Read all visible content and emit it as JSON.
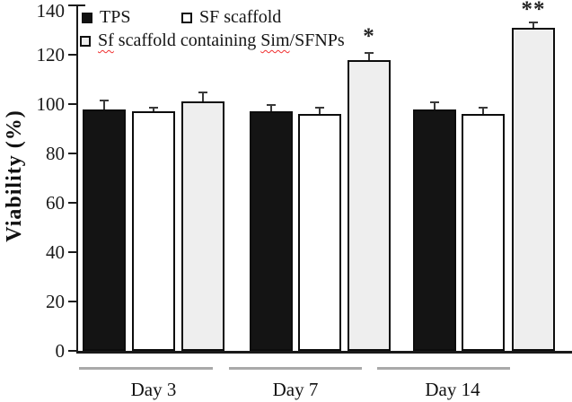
{
  "figure": {
    "kind": "grouped bar chart with error bars",
    "colors": {
      "tps_bar": "#141414",
      "sf_bar": "#ffffff",
      "sim_bar": "#eeeeee",
      "bar_border": "#0d0d0d",
      "axis": "#1a1a1a",
      "error_bar": "#3a3a3a",
      "group_underline": "#a9a9a9",
      "spellcheck_squiggle": "#f03030",
      "text": "#1a1a1a",
      "background": "#ffffff"
    }
  },
  "chart_data": {
    "type": "bar",
    "title": "",
    "ylabel": "Viability (%)",
    "xlabel": "",
    "categories": [
      "Day 3",
      "Day 7",
      "Day 14"
    ],
    "series": [
      {
        "name": "TPS",
        "values": [
          98,
          97,
          98
        ],
        "errors": [
          4,
          3,
          3
        ],
        "color": "#141414",
        "marker": "filled-black-square"
      },
      {
        "name": "SF scaffold",
        "values": [
          97,
          96,
          96
        ],
        "errors": [
          2,
          3,
          3
        ],
        "color": "#ffffff",
        "marker": "open-square"
      },
      {
        "name": "Sf scaffold containing Sim/SFNPs",
        "values": [
          101,
          118,
          131
        ],
        "errors": [
          4,
          3,
          2.5
        ],
        "color": "#eeeeee",
        "marker": "open-square",
        "misspelled_words": [
          "Sf",
          "Sim"
        ]
      }
    ],
    "annotations": [
      {
        "text": "*",
        "category_index": 1,
        "series_index": 2
      },
      {
        "text": "**",
        "category_index": 2,
        "series_index": 2
      }
    ],
    "yticks": [
      0,
      20,
      40,
      60,
      80,
      100,
      120,
      140
    ],
    "ylim": [
      0,
      140
    ],
    "grid": false,
    "error_bars": true,
    "legend_position": "top-left"
  }
}
